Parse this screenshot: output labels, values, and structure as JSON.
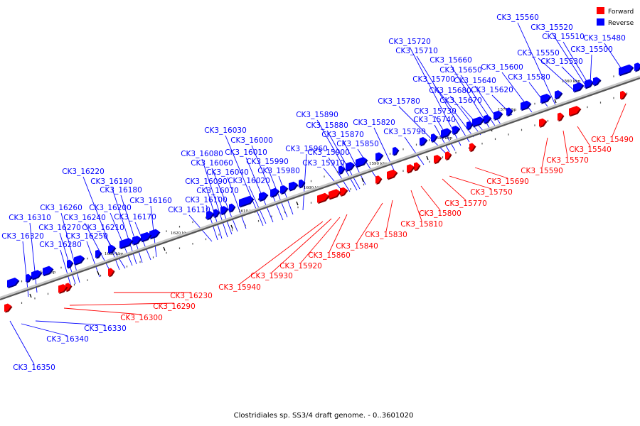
{
  "legend": {
    "forward_label": "Forward",
    "reverse_label": "Reverse",
    "forward_color": "#ff0000",
    "reverse_color": "#0000ff"
  },
  "caption": "Clostridiales sp. SS3/4 draft genome. - 0..3601020",
  "axis": {
    "unit": "kbp",
    "ticks": [
      {
        "kbp": 1560,
        "label": "1560 kbp"
      },
      {
        "kbp": 1570,
        "label": "1570 kbp"
      },
      {
        "kbp": 1580,
        "label": "1580 kbp"
      },
      {
        "kbp": 1590,
        "label": "1590 kbp"
      },
      {
        "kbp": 1600,
        "label": "1600 kbp"
      },
      {
        "kbp": 1610,
        "label": "1610 kbp"
      },
      {
        "kbp": 1620,
        "label": "1620 kbp"
      },
      {
        "kbp": 1630,
        "label": "1630 kbp"
      },
      {
        "kbp": 1640,
        "label": "1640 kbp"
      }
    ]
  },
  "reverse_genes": [
    "CK3_15480",
    "CK3_15500",
    "CK3_15510",
    "CK3_15520",
    "CK3_15530",
    "CK3_15550",
    "CK3_15560",
    "CK3_15580",
    "CK3_15600",
    "CK3_15620",
    "CK3_15640",
    "CK3_15650",
    "CK3_15660",
    "CK3_15670",
    "CK3_15680",
    "CK3_15700",
    "CK3_15710",
    "CK3_15720",
    "CK3_15730",
    "CK3_15740",
    "CK3_15780",
    "CK3_15790",
    "CK3_15820",
    "CK3_15850",
    "CK3_15870",
    "CK3_15880",
    "CK3_15890",
    "CK3_15900",
    "CK3_15910",
    "CK3_15960",
    "CK3_15980",
    "CK3_15990",
    "CK3_16000",
    "CK3_16010",
    "CK3_16020",
    "CK3_16030",
    "CK3_16040",
    "CK3_16060",
    "CK3_16070",
    "CK3_16080",
    "CK3_16090",
    "CK3_16100",
    "CK3_16110",
    "CK3_16160",
    "CK3_16170",
    "CK3_16180",
    "CK3_16190",
    "CK3_16200",
    "CK3_16210",
    "CK3_16220",
    "CK3_16240",
    "CK3_16250",
    "CK3_16260",
    "CK3_16270",
    "CK3_16280",
    "CK3_16310",
    "CK3_16320",
    "CK3_16330",
    "CK3_16340",
    "CK3_16350"
  ],
  "forward_genes": [
    "CK3_15490",
    "CK3_15540",
    "CK3_15570",
    "CK3_15590",
    "CK3_15690",
    "CK3_15750",
    "CK3_15770",
    "CK3_15800",
    "CK3_15810",
    "CK3_15830",
    "CK3_15840",
    "CK3_15860",
    "CK3_15920",
    "CK3_15930",
    "CK3_15940",
    "CK3_16230",
    "CK3_16290",
    "CK3_16300"
  ]
}
